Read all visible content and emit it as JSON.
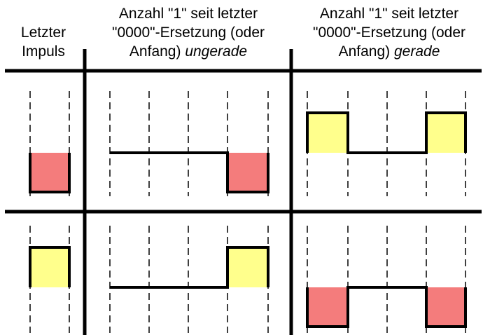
{
  "headers": {
    "col1": {
      "line1": "Letzter",
      "line2": "Impuls"
    },
    "col2": {
      "line1": "Anzahl \"1\" seit letzter",
      "line2": "\"0000\"-Ersetzung (oder",
      "line3_plain": "Anfang) ",
      "line3_italic": "ungerade"
    },
    "col3": {
      "line1": "Anzahl \"1\" seit letzter",
      "line2": "\"0000\"-Ersetzung (oder",
      "line3_plain": "Anfang) ",
      "line3_italic": "gerade"
    }
  },
  "colors": {
    "negative_pulse": "#f47c7c",
    "positive_pulse": "#ffff8c",
    "lines": "#000000"
  },
  "rows": [
    {
      "last_pulse": "negative",
      "odd_case": "low-level then negative pulse",
      "even_case": "positive pulse, zero, positive pulse"
    },
    {
      "last_pulse": "positive",
      "odd_case": "low-level then positive pulse",
      "even_case": "negative pulse, zero, negative pulse"
    }
  ]
}
